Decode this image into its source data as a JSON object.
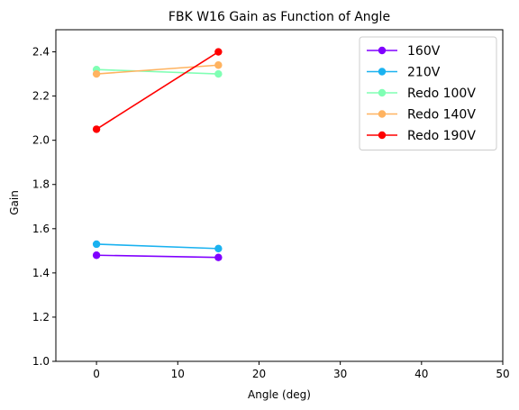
{
  "chart_data": {
    "type": "line",
    "title": "FBK W16 Gain as Function of Angle",
    "xlabel": "Angle (deg)",
    "ylabel": "Gain",
    "xlim": [
      -5,
      50
    ],
    "ylim": [
      1.0,
      2.5
    ],
    "xticks": [
      0,
      10,
      20,
      30,
      40,
      50
    ],
    "yticks": [
      1.0,
      1.2,
      1.4,
      1.6,
      1.8,
      2.0,
      2.2,
      2.4
    ],
    "xtick_labels": [
      "0",
      "10",
      "20",
      "30",
      "40",
      "50"
    ],
    "ytick_labels": [
      "1.0",
      "1.2",
      "1.4",
      "1.6",
      "1.8",
      "2.0",
      "2.2",
      "2.4"
    ],
    "grid": false,
    "legend_position": "top-right",
    "series": [
      {
        "name": "160V",
        "color": "#8000ff",
        "x": [
          0,
          15
        ],
        "y": [
          1.48,
          1.47
        ]
      },
      {
        "name": "210V",
        "color": "#1ab2f0",
        "x": [
          0,
          15
        ],
        "y": [
          1.53,
          1.51
        ]
      },
      {
        "name": "Redo 100V",
        "color": "#80ffb4",
        "x": [
          0,
          15
        ],
        "y": [
          2.32,
          2.3
        ]
      },
      {
        "name": "Redo 140V",
        "color": "#ffb360",
        "x": [
          0,
          15
        ],
        "y": [
          2.3,
          2.34
        ]
      },
      {
        "name": "Redo 190V",
        "color": "#ff0000",
        "x": [
          0,
          15
        ],
        "y": [
          2.05,
          2.4
        ]
      }
    ]
  }
}
